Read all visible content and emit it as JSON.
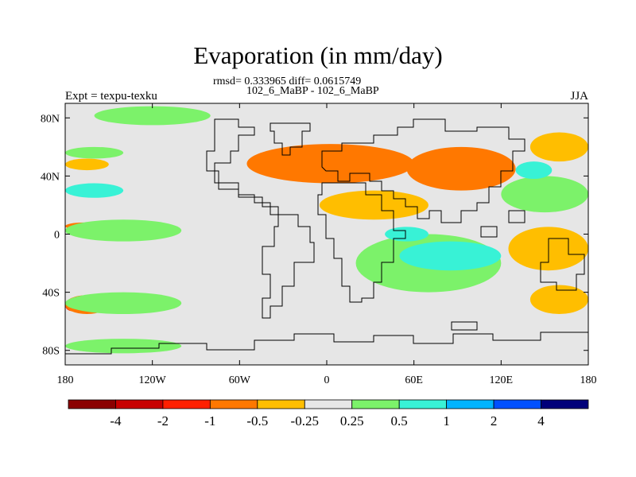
{
  "title": "Evaporation (in mm/day)",
  "stats_text": "rmsd= 0.333965 diff= 0.0615749",
  "subtitle": "102_6_MaBP - 102_6_MaBP",
  "left_label": "Expt = texpu-texku",
  "right_label": "JJA",
  "chart_data": {
    "type": "heatmap",
    "title": "Evaporation (in mm/day)",
    "xlim": [
      -180,
      180
    ],
    "ylim": [
      -90,
      90
    ],
    "x_ticks": [
      {
        "value": -180,
        "label": "180"
      },
      {
        "value": -120,
        "label": "120W"
      },
      {
        "value": -60,
        "label": "60W"
      },
      {
        "value": 0,
        "label": "0"
      },
      {
        "value": 60,
        "label": "60E"
      },
      {
        "value": 120,
        "label": "120E"
      },
      {
        "value": 180,
        "label": "180"
      }
    ],
    "y_ticks": [
      {
        "value": 80,
        "label": "80N"
      },
      {
        "value": 40,
        "label": "40N"
      },
      {
        "value": 0,
        "label": "0"
      },
      {
        "value": -40,
        "label": "40S"
      },
      {
        "value": -80,
        "label": "80S"
      }
    ],
    "colorbar": {
      "bins": [
        {
          "color": "#8b0000"
        },
        {
          "color": "#c80000"
        },
        {
          "color": "#ff2000"
        },
        {
          "color": "#ff7800"
        },
        {
          "color": "#ffbe00"
        },
        {
          "color": "#e6e6e6"
        },
        {
          "color": "#7cf26a"
        },
        {
          "color": "#38f2d6"
        },
        {
          "color": "#00b4ff"
        },
        {
          "color": "#0050ff"
        },
        {
          "color": "#00007a"
        }
      ],
      "labels": [
        "-4",
        "-2",
        "-1",
        "-0.5",
        "-0.25",
        "0.25",
        "0.5",
        "1",
        "2",
        "4"
      ]
    },
    "background_color": "#e6e6e6",
    "regions": [
      {
        "class": "strong-decrease",
        "color": "#ff2000",
        "lon": [
          -40,
          40
        ],
        "lat": [
          40,
          58
        ]
      },
      {
        "class": "strong-decrease",
        "color": "#ff2000",
        "lon": [
          65,
          125
        ],
        "lat": [
          38,
          55
        ]
      },
      {
        "class": "strong-decrease",
        "color": "#ff2000",
        "lon": [
          135,
          165
        ],
        "lat": [
          -15,
          -5
        ]
      },
      {
        "class": "strong-decrease",
        "color": "#ff2000",
        "lon": [
          -180,
          -170
        ],
        "lat": [
          -53,
          -45
        ]
      },
      {
        "class": "decrease",
        "color": "#ff7800",
        "lon": [
          -55,
          60
        ],
        "lat": [
          35,
          62
        ]
      },
      {
        "class": "decrease",
        "color": "#ff7800",
        "lon": [
          55,
          130
        ],
        "lat": [
          30,
          60
        ]
      },
      {
        "class": "decrease",
        "color": "#ff7800",
        "lon": [
          -180,
          -150
        ],
        "lat": [
          -55,
          -42
        ]
      },
      {
        "class": "decrease",
        "color": "#ff7800",
        "lon": [
          -180,
          -155
        ],
        "lat": [
          3,
          8
        ]
      },
      {
        "class": "moderate-decrease",
        "color": "#ffbe00",
        "lon": [
          -5,
          70
        ],
        "lat": [
          10,
          30
        ]
      },
      {
        "class": "moderate-decrease",
        "color": "#ffbe00",
        "lon": [
          125,
          180
        ],
        "lat": [
          -25,
          5
        ]
      },
      {
        "class": "moderate-decrease",
        "color": "#ffbe00",
        "lon": [
          140,
          180
        ],
        "lat": [
          -55,
          -35
        ]
      },
      {
        "class": "moderate-decrease",
        "color": "#ffbe00",
        "lon": [
          140,
          180
        ],
        "lat": [
          50,
          70
        ]
      },
      {
        "class": "moderate-decrease",
        "color": "#ffbe00",
        "lon": [
          -180,
          -150
        ],
        "lat": [
          44,
          52
        ]
      },
      {
        "class": "increase",
        "color": "#7cf26a",
        "lon": [
          -160,
          -80
        ],
        "lat": [
          75,
          88
        ]
      },
      {
        "class": "increase",
        "color": "#7cf26a",
        "lon": [
          -180,
          -100
        ],
        "lat": [
          -5,
          10
        ]
      },
      {
        "class": "increase",
        "color": "#7cf26a",
        "lon": [
          -180,
          -100
        ],
        "lat": [
          -55,
          -40
        ]
      },
      {
        "class": "increase",
        "color": "#7cf26a",
        "lon": [
          -180,
          -100
        ],
        "lat": [
          -82,
          -72
        ]
      },
      {
        "class": "increase",
        "color": "#7cf26a",
        "lon": [
          20,
          120
        ],
        "lat": [
          -40,
          0
        ]
      },
      {
        "class": "increase",
        "color": "#7cf26a",
        "lon": [
          120,
          180
        ],
        "lat": [
          15,
          40
        ]
      },
      {
        "class": "increase",
        "color": "#7cf26a",
        "lon": [
          -180,
          -140
        ],
        "lat": [
          52,
          60
        ]
      },
      {
        "class": "strong-increase",
        "color": "#38f2d6",
        "lon": [
          -180,
          -140
        ],
        "lat": [
          25,
          35
        ]
      },
      {
        "class": "strong-increase",
        "color": "#38f2d6",
        "lon": [
          50,
          120
        ],
        "lat": [
          -25,
          -5
        ]
      },
      {
        "class": "strong-increase",
        "color": "#38f2d6",
        "lon": [
          130,
          155
        ],
        "lat": [
          38,
          50
        ]
      },
      {
        "class": "strong-increase",
        "color": "#38f2d6",
        "lon": [
          40,
          70
        ],
        "lat": [
          -5,
          5
        ]
      }
    ]
  }
}
